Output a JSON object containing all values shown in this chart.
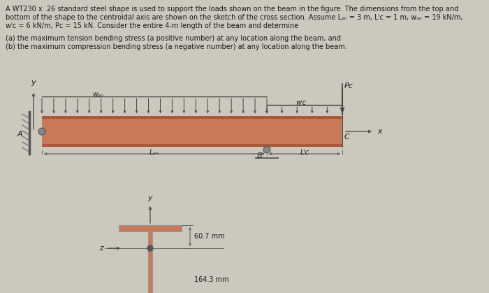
{
  "bg_color": "#cdc8be",
  "beam_color": "#c8795a",
  "beam_dark": "#a85a3a",
  "text_color": "#1a1a1a",
  "line_color": "#444444",
  "dim_color": "#555555",
  "support_color": "#888888",
  "dim_top": "60.7 mm",
  "dim_bot": "164.3 mm",
  "wt_label": "WT230 × 26",
  "label_WAB": "wₐₙ",
  "label_WBC": "wⁱc",
  "label_PC": "Pᴄ",
  "label_LAB": "Lₐₙ",
  "label_LBC": "Lⁱc",
  "label_A": "A",
  "label_B": "B",
  "label_C": "C",
  "label_x": "x",
  "label_y": "y",
  "label_z": "z",
  "line1": "A WT230 x  26 standard steel shape is used to support the loads shown on the beam in the figure. The dimensions from the top and",
  "line2": "bottom of the shape to the centroidal axis are shown on the sketch of the cross section. Assume Lₐₙ = 3 m, Lⁱc = 1 m, wₐₙ = 19 kN/m,",
  "line3": "wⁱc = 6 kN/m, Pᴄ = 15 kN. Consider the entire 4-m length of the beam and determine",
  "line4": "(a) the maximum tension bending stress (a positive number) at any location along the beam, and",
  "line5": "(b) the maximum compression bending stress (a negative number) at any location along the beam."
}
